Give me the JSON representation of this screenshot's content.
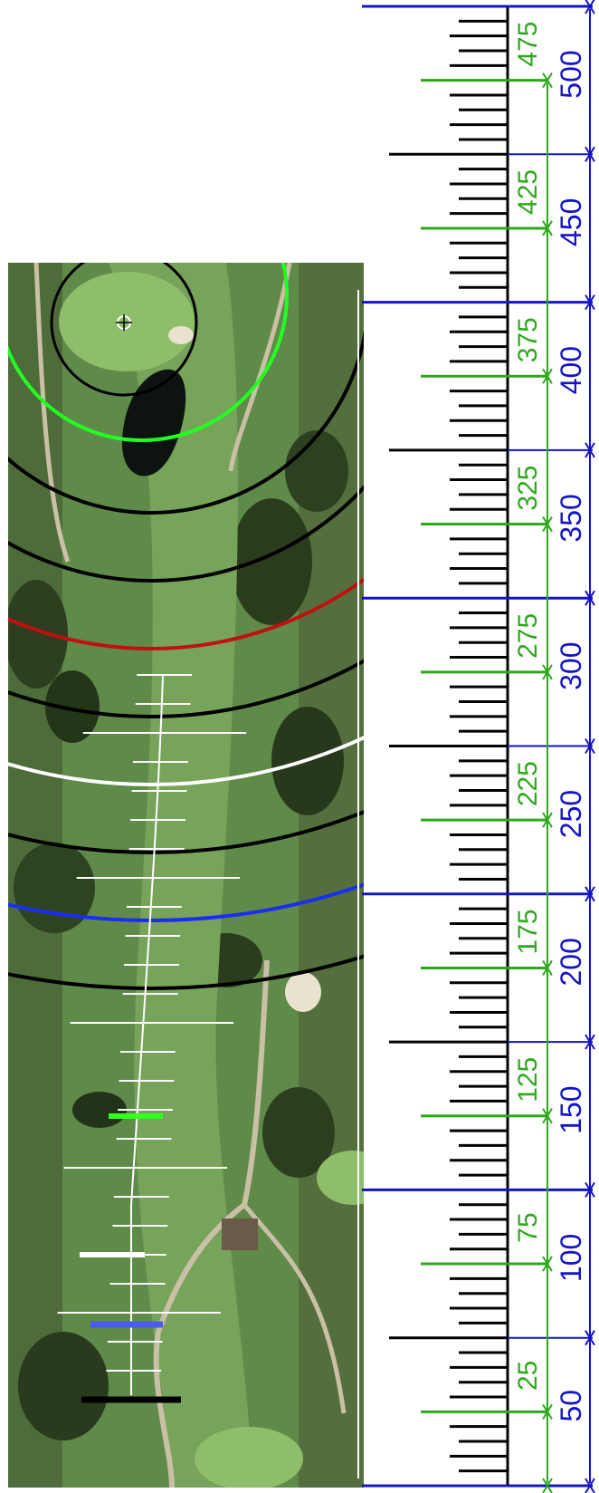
{
  "colors": {
    "ruler_major": "#1414c8",
    "ruler_green": "#2ea81c",
    "ruler_black": "#000000",
    "arc_black": "#000000",
    "arc_red": "#c01010",
    "arc_white": "#ffffff",
    "arc_blue": "#1a2ef0",
    "arc_yellow": "#ffee00",
    "arc_lime": "#22ff22",
    "fairway_line": "#ffffff",
    "tee_black": "#000000",
    "tee_blue": "#4a5cf0",
    "tee_white": "#ffffff",
    "tee_green": "#33ff22"
  },
  "map": {
    "hole_marker": "crosshair-flag-icon",
    "range_arcs": [
      "lime",
      "black",
      "black",
      "red",
      "black",
      "white",
      "black",
      "blue",
      "black",
      "yellow"
    ]
  },
  "ruler": {
    "units": "yards",
    "max": 500,
    "blue_labels": [
      "50",
      "100",
      "150",
      "200",
      "250",
      "300",
      "350",
      "400",
      "450",
      "500"
    ],
    "green_labels": [
      "25",
      "75",
      "125",
      "175",
      "225",
      "275",
      "325",
      "375",
      "425",
      "475"
    ]
  }
}
